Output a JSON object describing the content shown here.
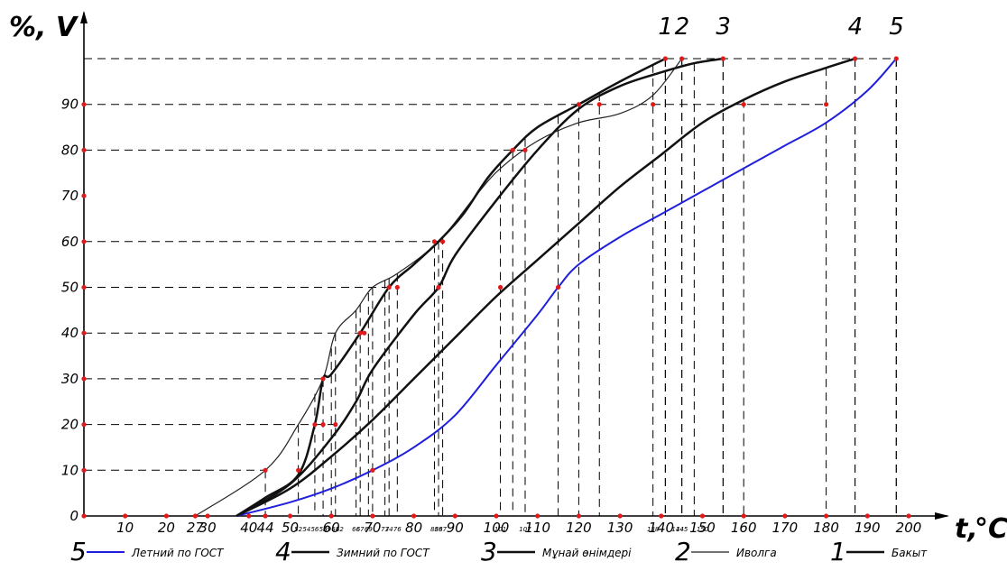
{
  "chart_data": {
    "type": "line",
    "y_axis_label": "%, V",
    "x_axis_label": "t,",
    "x_axis_unit": "°C",
    "xlim": [
      0,
      205
    ],
    "ylim": [
      0,
      100
    ],
    "x_ticks": [
      0,
      10,
      20,
      27,
      30,
      40,
      44,
      50,
      60,
      70,
      80,
      90,
      100,
      110,
      120,
      130,
      140,
      150,
      160,
      170,
      180,
      190,
      200
    ],
    "y_ticks": [
      0,
      10,
      20,
      30,
      40,
      50,
      60,
      70,
      80,
      90
    ],
    "y_tick_labels": [
      "0",
      "10",
      "20",
      "30",
      "40",
      "50",
      "60",
      "70",
      "80",
      "90"
    ],
    "tick_dot_color": "#e01a1a",
    "minor_labels": [
      "52",
      "54",
      "56",
      "58",
      "59",
      "61",
      "62",
      "66",
      "67",
      "69",
      "73",
      "74",
      "76",
      "85",
      "86",
      "87",
      "101",
      "107",
      "138",
      "144",
      "145",
      "150"
    ],
    "reference_lines": [
      {
        "y": 10,
        "x_end": 44
      },
      {
        "y": 20,
        "x_end": 61
      },
      {
        "y": 30,
        "x_end": 58
      },
      {
        "y": 40,
        "x_end": 67
      },
      {
        "y": 50,
        "x_end": 76
      },
      {
        "y": 60,
        "x_end": 87
      },
      {
        "y": 80,
        "x_end": 107
      },
      {
        "y": 90,
        "x_end": 180
      },
      {
        "y": 100,
        "x_end": 197
      }
    ],
    "series": [
      {
        "name": "Летний по ГОСТ",
        "number": "5",
        "color": "#1f1fdc",
        "width": 2,
        "x": [
          37,
          50,
          60,
          70,
          80,
          90,
          100,
          110,
          115,
          120,
          130,
          140,
          150,
          160,
          170,
          180,
          190,
          197
        ],
        "y": [
          0,
          3,
          6,
          10,
          15,
          22,
          33,
          44,
          50,
          55,
          61,
          66,
          71,
          76,
          81,
          86,
          93,
          100
        ]
      },
      {
        "name": "Зимний по ГОСТ",
        "number": "4",
        "color": "#111111",
        "width": 2.5,
        "x": [
          37,
          50,
          60,
          70,
          80,
          90,
          100,
          110,
          120,
          130,
          140,
          150,
          160,
          170,
          180,
          187
        ],
        "y": [
          0,
          6,
          13,
          21,
          30,
          39,
          48,
          56,
          64,
          72,
          79,
          86,
          91,
          95,
          98,
          100
        ]
      },
      {
        "name": "Мұнай өнімдері",
        "number": "3",
        "color": "#111111",
        "width": 2.5,
        "x": [
          37,
          50,
          60,
          66,
          70,
          80,
          86,
          90,
          100,
          110,
          120,
          130,
          140,
          148,
          155
        ],
        "y": [
          0,
          7,
          17,
          25,
          32,
          44,
          50,
          57,
          69,
          80,
          89,
          94,
          97,
          99,
          100
        ]
      },
      {
        "name": "Иволга",
        "number": "2",
        "color": "#222222",
        "width": 1.2,
        "x": [
          27,
          44,
          52,
          58,
          61,
          66,
          70,
          76,
          86,
          95,
          101,
          110,
          120,
          130,
          138,
          145
        ],
        "y": [
          0,
          10,
          20,
          30,
          40,
          45,
          50,
          53,
          60,
          70,
          76,
          82,
          86,
          88,
          92,
          100
        ]
      },
      {
        "name": "Бакыт",
        "number": "1",
        "color": "#111111",
        "width": 2.5,
        "x": [
          37,
          44,
          52,
          56,
          58,
          60,
          67,
          74,
          80,
          86,
          92,
          98,
          104,
          110,
          120,
          130,
          141
        ],
        "y": [
          0,
          4,
          9,
          20,
          30,
          31,
          40,
          50,
          55,
          60,
          66,
          74,
          80,
          85,
          90,
          95,
          100
        ]
      }
    ],
    "legend_placement": "bottom",
    "grid": false
  }
}
